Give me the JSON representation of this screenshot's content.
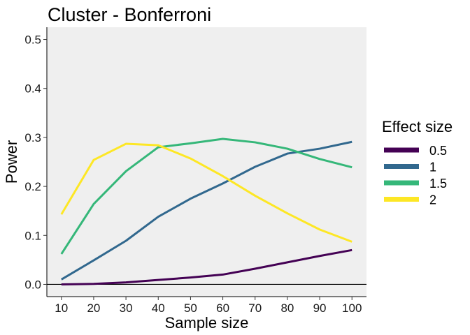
{
  "chart_data": {
    "type": "line",
    "title": "Cluster - Bonferroni",
    "xlabel": "Sample size",
    "ylabel": "Power",
    "x": [
      10,
      20,
      30,
      40,
      50,
      60,
      70,
      80,
      90,
      100
    ],
    "xticks": [
      "10",
      "20",
      "30",
      "40",
      "50",
      "60",
      "70",
      "80",
      "90",
      "100"
    ],
    "yticks": [
      "0.0",
      "0.1",
      "0.2",
      "0.3",
      "0.4",
      "0.5"
    ],
    "ylim": [
      -0.025,
      0.525
    ],
    "xlim": [
      5.5,
      104.5
    ],
    "grid": false,
    "legend": {
      "title": "Effect size",
      "position": "right"
    },
    "series": [
      {
        "name": "0.5",
        "color": "#440154",
        "values": [
          0.0,
          0.001,
          0.004,
          0.009,
          0.014,
          0.02,
          0.032,
          0.045,
          0.058,
          0.07
        ]
      },
      {
        "name": "1",
        "color": "#31688E",
        "values": [
          0.01,
          0.049,
          0.089,
          0.138,
          0.175,
          0.206,
          0.24,
          0.267,
          0.277,
          0.291
        ]
      },
      {
        "name": "1.5",
        "color": "#35B779",
        "values": [
          0.062,
          0.164,
          0.231,
          0.28,
          0.288,
          0.297,
          0.29,
          0.277,
          0.256,
          0.239
        ]
      },
      {
        "name": "2",
        "color": "#FDE725",
        "values": [
          0.143,
          0.254,
          0.287,
          0.284,
          0.257,
          0.221,
          0.181,
          0.145,
          0.112,
          0.087
        ]
      }
    ]
  }
}
